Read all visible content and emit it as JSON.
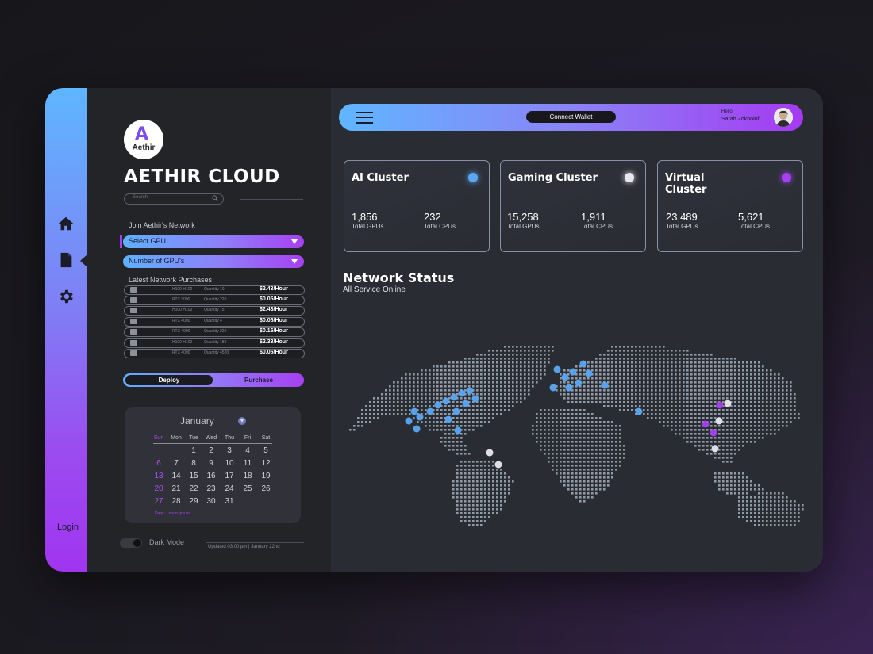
{
  "brand": {
    "logo_text": "Aethir",
    "name": "AETHIR CLOUD"
  },
  "nav": {
    "icons": [
      "home-icon",
      "document-icon",
      "gear-icon"
    ],
    "login": "Login"
  },
  "search": {
    "placeholder": "Search"
  },
  "join": {
    "label": "Join Aethir's Network",
    "select_gpu": "Select GPU",
    "num_gpus": "Number of GPU's"
  },
  "purchases": {
    "label": "Latest Network Purchases",
    "rows": [
      {
        "gpu": "H100 H100",
        "qty": "Quantity 10",
        "price": "$2.43/Hour"
      },
      {
        "gpu": "RTX 3090",
        "qty": "Quantity 220",
        "price": "$0.05/Hour"
      },
      {
        "gpu": "H100 H100",
        "qty": "Quantity 15",
        "price": "$2.43/Hour"
      },
      {
        "gpu": "RTX 4090",
        "qty": "Quantity 4",
        "price": "$0.06/Hour"
      },
      {
        "gpu": "RTX 4090",
        "qty": "Quantity 220",
        "price": "$0.16/Hour"
      },
      {
        "gpu": "H100 H100",
        "qty": "Quantity 189",
        "price": "$2.33/Hour"
      },
      {
        "gpu": "RTX 4090",
        "qty": "Quantity 4520",
        "price": "$0.06/Hour"
      }
    ]
  },
  "actions": {
    "deploy": "Deploy",
    "purchase": "Purchase"
  },
  "calendar": {
    "month": "January",
    "days": [
      "Sun",
      "Mon",
      "Tue",
      "Wed",
      "Thu",
      "Fri",
      "Sat"
    ],
    "weeks": [
      [
        "",
        "",
        "1",
        "2",
        "3",
        "4",
        "5"
      ],
      [
        "6",
        "7",
        "8",
        "9",
        "10",
        "11",
        "12"
      ],
      [
        "13",
        "14",
        "15",
        "16",
        "17",
        "18",
        "19"
      ],
      [
        "20",
        "21",
        "22",
        "23",
        "24",
        "25",
        "26"
      ],
      [
        "27",
        "28",
        "29",
        "30",
        "31",
        "",
        ""
      ]
    ],
    "note": "Date : Lorem Ipsum"
  },
  "footer": {
    "dark_mode": "Dark Mode",
    "updated": "Updated 03:00 pm | January 22nd"
  },
  "topbar": {
    "connect_wallet": "Connect Wallet",
    "hello": "Hello!",
    "user_name": "Sarah Zokholof"
  },
  "clusters": [
    {
      "title": "AI Cluster",
      "gpus": "1,856",
      "gpus_label": "Total GPUs",
      "cpus": "232",
      "cpus_label": "Total CPUs",
      "dot_color": "#5aa8f5"
    },
    {
      "title": "Gaming Cluster",
      "gpus": "15,258",
      "gpus_label": "Total GPUs",
      "cpus": "1,911",
      "cpus_label": "Total CPUs",
      "dot_color": "#e8e8ee"
    },
    {
      "title": "Virtual Cluster",
      "gpus": "23,489",
      "gpus_label": "Total GPUs",
      "cpus": "5,621",
      "cpus_label": "Total CPUs",
      "dot_color": "#a640f2"
    }
  ],
  "network": {
    "title": "Network Status",
    "subtitle": "All Service Online"
  }
}
